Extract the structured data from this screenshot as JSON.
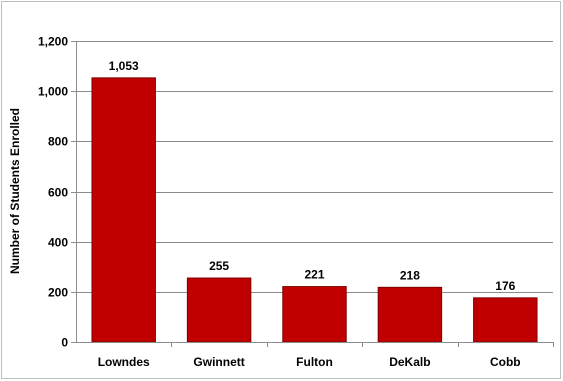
{
  "chart_data": {
    "type": "bar",
    "categories": [
      "Lowndes",
      "Gwinnett",
      "Fulton",
      "DeKalb",
      "Cobb"
    ],
    "values": [
      1053,
      255,
      221,
      218,
      176
    ],
    "value_labels": [
      "1,053",
      "255",
      "221",
      "218",
      "176"
    ],
    "title": "",
    "xlabel": "",
    "ylabel": "Number of Students Enrolled",
    "ylim": [
      0,
      1200
    ],
    "yticks": [
      0,
      200,
      400,
      600,
      800,
      1000,
      1200
    ],
    "ytick_labels": [
      "0",
      "200",
      "400",
      "600",
      "800",
      "1,000",
      "1,200"
    ],
    "grid": true,
    "legend": "none",
    "colors": {
      "bar": "#c00000",
      "bar_edge": "#7f0000",
      "grid": "#8c8c8c",
      "axis": "#8c8c8c"
    }
  }
}
